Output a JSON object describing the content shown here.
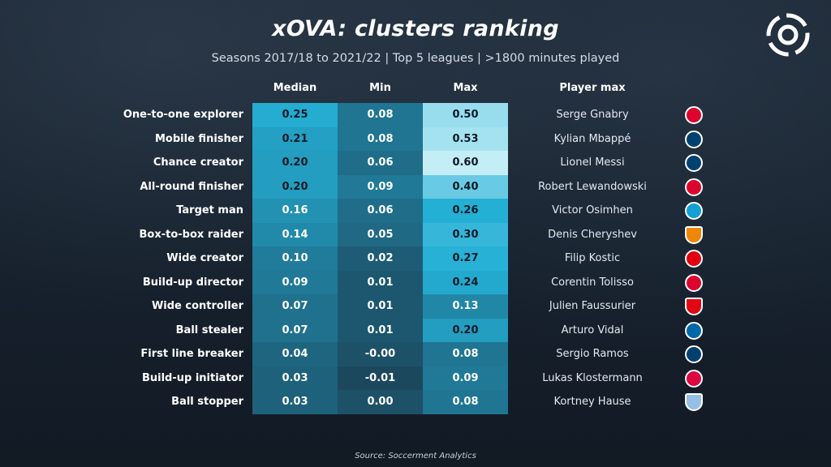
{
  "title": "xOVA: clusters ranking",
  "subtitle": "Seasons 2017/18 to 2021/22 | Top 5 leagues | >1800 minutes played",
  "source": "Source: Soccerment Analytics",
  "logo_icon": "soccerment-logo-icon",
  "chart_data": {
    "type": "table",
    "columns": [
      "Median",
      "Min",
      "Max",
      "Player max"
    ],
    "rows": [
      {
        "cluster": "One-to-one explorer",
        "median": "0.25",
        "min": "0.08",
        "max": "0.50",
        "player": "Serge Gnabry",
        "club_icon": "bayern-badge-icon",
        "club_color": "#dc052d"
      },
      {
        "cluster": "Mobile finisher",
        "median": "0.21",
        "min": "0.08",
        "max": "0.53",
        "player": "Kylian Mbappé",
        "club_icon": "psg-badge-icon",
        "club_color": "#004170"
      },
      {
        "cluster": "Chance creator",
        "median": "0.20",
        "min": "0.06",
        "max": "0.60",
        "player": "Lionel Messi",
        "club_icon": "psg-badge-icon",
        "club_color": "#004170"
      },
      {
        "cluster": "All-round finisher",
        "median": "0.20",
        "min": "0.09",
        "max": "0.40",
        "player": "Robert Lewandowski",
        "club_icon": "bayern-badge-icon",
        "club_color": "#dc052d"
      },
      {
        "cluster": "Target man",
        "median": "0.16",
        "min": "0.06",
        "max": "0.26",
        "player": "Victor Osimhen",
        "club_icon": "napoli-badge-icon",
        "club_color": "#12a0d7"
      },
      {
        "cluster": "Box-to-box raider",
        "median": "0.14",
        "min": "0.05",
        "max": "0.30",
        "player": "Denis Cheryshev",
        "club_icon": "valencia-badge-icon",
        "club_color": "#ee8707"
      },
      {
        "cluster": "Wide creator",
        "median": "0.10",
        "min": "0.02",
        "max": "0.27",
        "player": "Filip Kostic",
        "club_icon": "frankfurt-badge-icon",
        "club_color": "#e1000f"
      },
      {
        "cluster": "Build-up director",
        "median": "0.09",
        "min": "0.01",
        "max": "0.24",
        "player": "Corentin Tolisso",
        "club_icon": "bayern-badge-icon",
        "club_color": "#dc052d"
      },
      {
        "cluster": "Wide controller",
        "median": "0.07",
        "min": "0.01",
        "max": "0.13",
        "player": "Julien Faussurier",
        "club_icon": "brest-badge-icon",
        "club_color": "#e30613"
      },
      {
        "cluster": "Ball stealer",
        "median": "0.07",
        "min": "0.01",
        "max": "0.20",
        "player": "Arturo Vidal",
        "club_icon": "inter-badge-icon",
        "club_color": "#0068a8"
      },
      {
        "cluster": "First line breaker",
        "median": "0.04",
        "min": "-0.00",
        "max": "0.08",
        "player": "Sergio Ramos",
        "club_icon": "psg-badge-icon",
        "club_color": "#004170"
      },
      {
        "cluster": "Build-up initiator",
        "median": "0.03",
        "min": "-0.01",
        "max": "0.09",
        "player": "Lukas Klostermann",
        "club_icon": "leipzig-badge-icon",
        "club_color": "#dd0741"
      },
      {
        "cluster": "Ball stopper",
        "median": "0.03",
        "min": "0.00",
        "max": "0.08",
        "player": "Kortney Hause",
        "club_icon": "villa-badge-icon",
        "club_color": "#95bfe5"
      }
    ]
  }
}
